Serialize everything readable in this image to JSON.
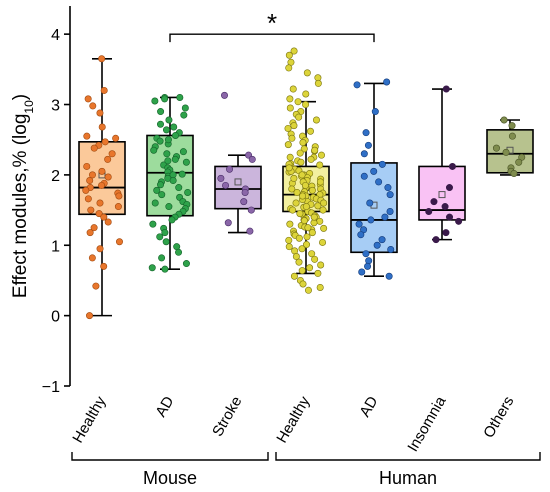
{
  "chart_data": {
    "type": "box",
    "ylabel": "Effect modules,% (log",
    "ylabel_subscript": "10",
    "ylabel_close": ")",
    "ylim": [
      -1,
      4.4
    ],
    "yticks": [
      -1,
      0,
      1,
      2,
      3,
      4
    ],
    "grid": false,
    "categories": [
      "Healthy",
      "AD",
      "Stroke",
      "Healthy",
      "AD",
      "Insomnia",
      "Others"
    ],
    "groups": [
      {
        "label": "Mouse",
        "categories": [
          0,
          1,
          2
        ]
      },
      {
        "label": "Human",
        "categories": [
          3,
          4,
          5,
          6
        ]
      }
    ],
    "significance": {
      "from": 1,
      "to": 4,
      "label": "*",
      "y": 4.0
    },
    "boxes": [
      {
        "name": "Mouse Healthy",
        "fill": "#fbc99a",
        "dot": "#e8762c",
        "edge": "#a04a10",
        "min": 0.0,
        "q1": 1.44,
        "median": 1.82,
        "q3": 2.47,
        "max": 3.65,
        "mean": 2.0,
        "points": [
          3.65,
          3.2,
          3.08,
          2.98,
          2.88,
          2.68,
          2.55,
          2.52,
          2.47,
          2.42,
          2.38,
          2.3,
          2.22,
          2.12,
          2.05,
          2.0,
          1.97,
          1.92,
          1.88,
          1.85,
          1.82,
          1.78,
          1.74,
          1.7,
          1.66,
          1.6,
          1.55,
          1.5,
          1.45,
          1.4,
          1.33,
          1.25,
          1.18,
          1.05,
          0.95,
          0.82,
          0.7,
          0.42,
          0.0
        ]
      },
      {
        "name": "Mouse AD",
        "fill": "#9ddc9d",
        "dot": "#2ea24a",
        "edge": "#14622a",
        "min": 0.66,
        "q1": 1.42,
        "median": 2.03,
        "q3": 2.56,
        "max": 3.1,
        "mean": 2.0,
        "points": [
          3.1,
          3.1,
          3.08,
          3.05,
          2.95,
          2.9,
          2.85,
          2.78,
          2.72,
          2.68,
          2.64,
          2.6,
          2.56,
          2.52,
          2.48,
          2.44,
          2.4,
          2.35,
          2.3,
          2.26,
          2.22,
          2.18,
          2.14,
          2.1,
          2.07,
          2.04,
          2.01,
          1.98,
          1.95,
          1.9,
          1.86,
          1.82,
          1.78,
          1.72,
          1.68,
          1.62,
          1.58,
          1.52,
          1.48,
          1.44,
          1.4,
          1.36,
          1.3,
          1.24,
          1.18,
          1.12,
          1.05,
          0.98,
          0.9,
          0.82,
          0.74,
          0.68,
          0.66,
          2.0,
          2.2,
          1.6,
          1.75,
          2.5,
          2.33,
          1.92,
          1.55
        ]
      },
      {
        "name": "Mouse Stroke",
        "fill": "#cbb5dc",
        "dot": "#8a66a8",
        "edge": "#4a2e68",
        "min": 1.18,
        "q1": 1.52,
        "median": 1.8,
        "q3": 2.12,
        "max": 2.28,
        "mean": 1.9,
        "points": [
          3.13,
          2.28,
          2.22,
          2.08,
          1.95,
          1.85,
          1.8,
          1.75,
          1.62,
          1.5,
          1.32,
          1.2
        ]
      },
      {
        "name": "Human Healthy",
        "fill": "#f3f0a0",
        "dot": "#dcd43a",
        "edge": "#7a7410",
        "min": 0.6,
        "q1": 1.48,
        "median": 1.72,
        "q3": 2.12,
        "max": 3.04,
        "mean": 1.82,
        "points": [
          3.76,
          3.7,
          3.6,
          3.52,
          3.45,
          3.38,
          3.3,
          3.22,
          3.15,
          3.08,
          3.04,
          3.0,
          2.95,
          2.9,
          2.86,
          2.82,
          2.78,
          2.74,
          2.7,
          2.66,
          2.62,
          2.58,
          2.55,
          2.52,
          2.49,
          2.46,
          2.43,
          2.4,
          2.37,
          2.34,
          2.31,
          2.28,
          2.25,
          2.22,
          2.2,
          2.18,
          2.16,
          2.14,
          2.12,
          2.1,
          2.08,
          2.06,
          2.04,
          2.02,
          2.0,
          1.98,
          1.96,
          1.94,
          1.92,
          1.9,
          1.88,
          1.86,
          1.84,
          1.82,
          1.8,
          1.78,
          1.76,
          1.74,
          1.72,
          1.72,
          1.7,
          1.68,
          1.66,
          1.64,
          1.62,
          1.6,
          1.58,
          1.56,
          1.54,
          1.52,
          1.5,
          1.48,
          1.46,
          1.44,
          1.42,
          1.4,
          1.38,
          1.36,
          1.34,
          1.32,
          1.3,
          1.28,
          1.26,
          1.24,
          1.22,
          1.2,
          1.18,
          1.16,
          1.14,
          1.12,
          1.1,
          1.07,
          1.04,
          1.01,
          0.98,
          0.95,
          0.92,
          0.88,
          0.84,
          0.8,
          0.76,
          0.72,
          0.68,
          0.64,
          0.6,
          0.56,
          0.5,
          0.45,
          0.4,
          0.36,
          2.05,
          1.95,
          1.85,
          1.75,
          1.65,
          1.55,
          1.45,
          2.15,
          2.25,
          2.35,
          1.35,
          1.25,
          1.9,
          1.8,
          1.7,
          1.6,
          2.0,
          2.1,
          1.5,
          1.4
        ]
      },
      {
        "name": "Human AD",
        "fill": "#a7cdf5",
        "dot": "#2f6fc6",
        "edge": "#133a78",
        "min": 0.56,
        "q1": 0.9,
        "median": 1.36,
        "q3": 2.17,
        "max": 3.3,
        "mean": 1.57,
        "points": [
          3.32,
          3.28,
          2.9,
          2.6,
          2.42,
          2.3,
          2.15,
          2.05,
          1.98,
          1.9,
          1.82,
          1.72,
          1.6,
          1.48,
          1.4,
          1.36,
          1.3,
          1.22,
          1.15,
          1.08,
          1.0,
          0.94,
          0.88,
          0.78,
          0.7,
          0.62,
          0.56
        ]
      },
      {
        "name": "Human Insomnia",
        "fill": "#f9c2f4",
        "dot": "#3a1a4a",
        "edge": "#3a1a4a",
        "min": 1.08,
        "q1": 1.36,
        "median": 1.5,
        "q3": 2.12,
        "max": 3.22,
        "mean": 1.72,
        "points": [
          3.22,
          2.12,
          1.82,
          1.62,
          1.55,
          1.48,
          1.4,
          1.34,
          1.18,
          1.08
        ]
      },
      {
        "name": "Human Others",
        "fill": "#b7c28e",
        "dot": "#7f8c4e",
        "edge": "#4a5426",
        "min": 2.0,
        "q1": 2.03,
        "median": 2.3,
        "q3": 2.64,
        "max": 2.78,
        "mean": 2.35,
        "points": [
          2.78,
          2.7,
          2.55,
          2.38,
          2.32,
          2.25,
          2.18,
          2.1,
          2.05,
          2.02
        ]
      }
    ]
  }
}
